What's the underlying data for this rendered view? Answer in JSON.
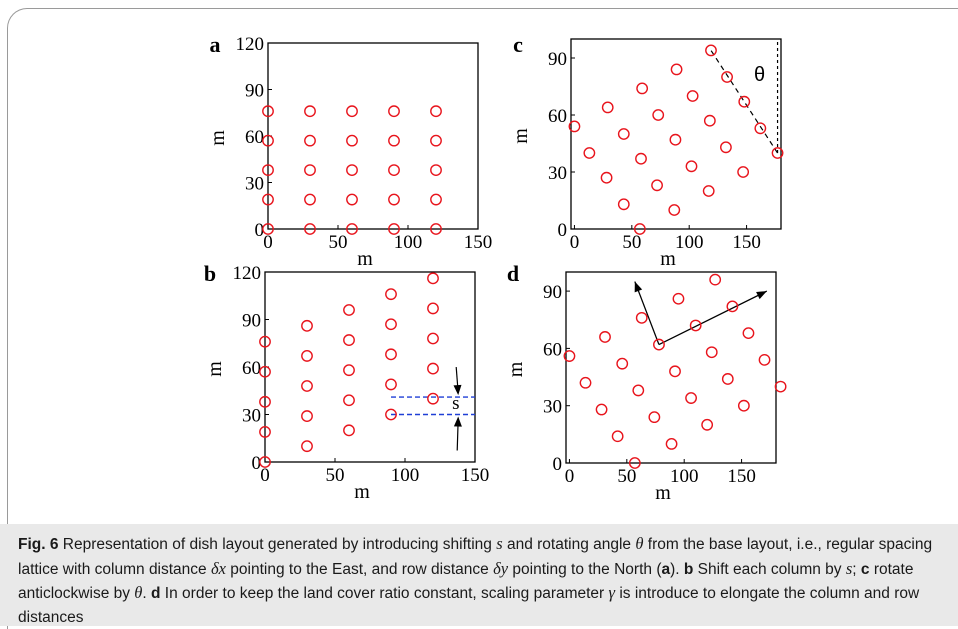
{
  "colors": {
    "marker": "#e8141c",
    "axis": "#000000",
    "shift_line": "#1f3fd6",
    "caption_bg": "#e9e9e9"
  },
  "chart_data": [
    {
      "panel": "a",
      "type": "scatter",
      "marker": "circle-open",
      "xlabel": "m",
      "ylabel": "m",
      "xlim": [
        0,
        150
      ],
      "ylim": [
        0,
        120
      ],
      "xticks": [
        0,
        50,
        100,
        150
      ],
      "yticks": [
        0,
        30,
        60,
        90,
        120
      ],
      "points": [
        [
          0,
          0
        ],
        [
          0,
          19
        ],
        [
          0,
          38
        ],
        [
          0,
          57
        ],
        [
          0,
          76
        ],
        [
          30,
          0
        ],
        [
          30,
          19
        ],
        [
          30,
          38
        ],
        [
          30,
          57
        ],
        [
          30,
          76
        ],
        [
          60,
          0
        ],
        [
          60,
          19
        ],
        [
          60,
          38
        ],
        [
          60,
          57
        ],
        [
          60,
          76
        ],
        [
          90,
          0
        ],
        [
          90,
          19
        ],
        [
          90,
          38
        ],
        [
          90,
          57
        ],
        [
          90,
          76
        ],
        [
          120,
          0
        ],
        [
          120,
          19
        ],
        [
          120,
          38
        ],
        [
          120,
          57
        ],
        [
          120,
          76
        ]
      ]
    },
    {
      "panel": "b",
      "type": "scatter",
      "marker": "circle-open",
      "xlabel": "m",
      "ylabel": "m",
      "xlim": [
        0,
        150
      ],
      "ylim": [
        0,
        120
      ],
      "xticks": [
        0,
        50,
        100,
        150
      ],
      "yticks": [
        0,
        30,
        60,
        90,
        120
      ],
      "annotation": "s",
      "shift_lines_y": [
        30,
        41
      ],
      "points": [
        [
          0,
          0
        ],
        [
          0,
          19
        ],
        [
          0,
          38
        ],
        [
          0,
          57
        ],
        [
          0,
          76
        ],
        [
          30,
          10
        ],
        [
          30,
          29
        ],
        [
          30,
          48
        ],
        [
          30,
          67
        ],
        [
          30,
          86
        ],
        [
          60,
          20
        ],
        [
          60,
          39
        ],
        [
          60,
          58
        ],
        [
          60,
          77
        ],
        [
          60,
          96
        ],
        [
          90,
          30
        ],
        [
          90,
          49
        ],
        [
          90,
          68
        ],
        [
          90,
          87
        ],
        [
          90,
          106
        ],
        [
          120,
          40
        ],
        [
          120,
          59
        ],
        [
          120,
          78
        ],
        [
          120,
          97
        ],
        [
          120,
          116
        ]
      ]
    },
    {
      "panel": "c",
      "type": "scatter",
      "marker": "circle-open",
      "xlabel": "m",
      "ylabel": "m",
      "xlim": [
        -3,
        180
      ],
      "ylim": [
        0,
        100
      ],
      "xticks": [
        0,
        50,
        100,
        150
      ],
      "yticks": [
        0,
        30,
        60,
        90
      ],
      "annotation": "θ",
      "points": [
        [
          57,
          0
        ],
        [
          43,
          13
        ],
        [
          28,
          27
        ],
        [
          13,
          40
        ],
        [
          0,
          54
        ],
        [
          87,
          10
        ],
        [
          72,
          23
        ],
        [
          58,
          37
        ],
        [
          43,
          50
        ],
        [
          29,
          64
        ],
        [
          117,
          20
        ],
        [
          102,
          33
        ],
        [
          88,
          47
        ],
        [
          73,
          60
        ],
        [
          59,
          74
        ],
        [
          147,
          30
        ],
        [
          132,
          43
        ],
        [
          118,
          57
        ],
        [
          103,
          70
        ],
        [
          89,
          84
        ],
        [
          177,
          40
        ],
        [
          162,
          53
        ],
        [
          148,
          67
        ],
        [
          133,
          80
        ],
        [
          119,
          94
        ]
      ]
    },
    {
      "panel": "d",
      "type": "scatter",
      "marker": "circle-open",
      "xlabel": "m",
      "ylabel": "m",
      "xlim": [
        -3,
        180
      ],
      "ylim": [
        0,
        100
      ],
      "xticks": [
        0,
        50,
        100,
        150
      ],
      "yticks": [
        0,
        30,
        60,
        90
      ],
      "points": [
        [
          57,
          0
        ],
        [
          42,
          14
        ],
        [
          28,
          28
        ],
        [
          14,
          42
        ],
        [
          0,
          56
        ],
        [
          89,
          10
        ],
        [
          74,
          24
        ],
        [
          60,
          38
        ],
        [
          46,
          52
        ],
        [
          31,
          66
        ],
        [
          120,
          20
        ],
        [
          106,
          34
        ],
        [
          92,
          48
        ],
        [
          78,
          62
        ],
        [
          63,
          76
        ],
        [
          152,
          30
        ],
        [
          138,
          44
        ],
        [
          124,
          58
        ],
        [
          110,
          72
        ],
        [
          95,
          86
        ],
        [
          184,
          40
        ],
        [
          170,
          54
        ],
        [
          156,
          68
        ],
        [
          142,
          82
        ],
        [
          127,
          96
        ]
      ],
      "arrows_from": [
        78,
        62
      ],
      "arrows_to": [
        [
          57,
          95
        ],
        [
          172,
          90
        ]
      ]
    }
  ],
  "caption": {
    "label": "Fig. 6",
    "p1": " Representation of dish layout generated by introducing shifting ",
    "s": "s",
    "p2": " and rotating angle ",
    "theta": "θ",
    "p3": " from the base layout, i.e., regular spacing lattice with column distance ",
    "dx": "δx",
    "p4": " pointing to the East, and row distance ",
    "dy": "δy",
    "p5": " pointing to the North (",
    "a": "a",
    "p6": "). ",
    "b": "b",
    "p7": " Shift each column by ",
    "s2": "s",
    "p8": "; ",
    "c": "c",
    "p9": " rotate anticlockwise by ",
    "theta2": "θ",
    "p10": ". ",
    "d": "d",
    "p11": " In order to keep the land cover ratio constant, scaling parameter ",
    "gamma": "γ",
    "p12": " is introduce to elongate the column and row distances"
  }
}
